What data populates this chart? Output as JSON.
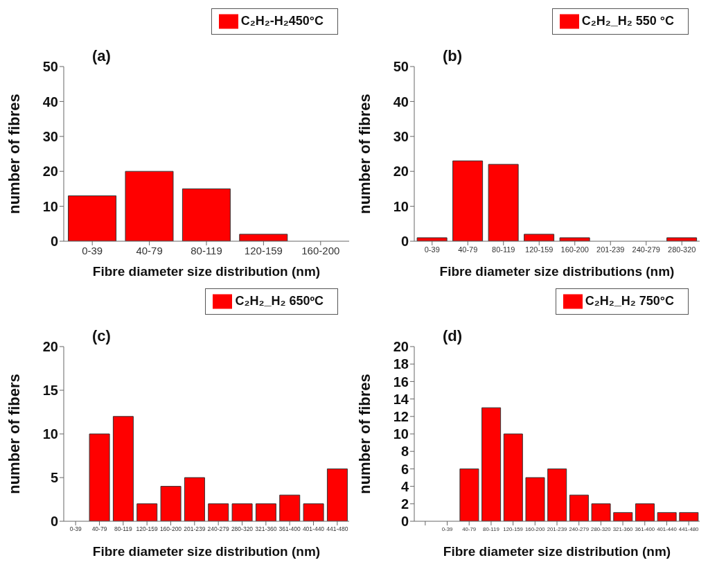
{
  "chart_data": [
    {
      "type": "bar",
      "title": "(a)",
      "categories": [
        "0-39",
        "40-79",
        "80-119",
        "120-159",
        "160-200"
      ],
      "series": [
        {
          "name": "C₂H₂-H₂450°C",
          "color": "#ff0000",
          "values": [
            13,
            20,
            15,
            2,
            0
          ]
        }
      ],
      "xlabel": "Fibre diameter size distribution (nm)",
      "ylabel": "number of fibres",
      "ylim": [
        0,
        50
      ],
      "yticks": [
        0,
        10,
        20,
        30,
        40,
        50
      ],
      "legend": "top right",
      "grid": false
    },
    {
      "type": "bar",
      "title": "(b)",
      "categories": [
        "0-39",
        "40-79",
        "80-119",
        "120-159",
        "160-200",
        "201-239",
        "240-279",
        "280-320"
      ],
      "series": [
        {
          "name": "C₂H₂_H₂ 550 °C",
          "color": "#ff0000",
          "values": [
            1,
            23,
            22,
            2,
            1,
            0,
            0,
            1
          ]
        }
      ],
      "xlabel": "Fibre diameter size distributions (nm)",
      "ylabel": "number of fibres",
      "ylim": [
        0,
        50
      ],
      "yticks": [
        0,
        10,
        20,
        30,
        40,
        50
      ],
      "legend": "top right",
      "grid": false
    },
    {
      "type": "bar",
      "title": "(c)",
      "categories": [
        "0-39",
        "40-79",
        "80-119",
        "120-159",
        "160-200",
        "201-239",
        "240-279",
        "280-320",
        "321-360",
        "361-400",
        "401-440",
        "441-480"
      ],
      "series": [
        {
          "name": "C₂H₂_H₂ 650ºC",
          "color": "#ff0000",
          "values": [
            0,
            10,
            12,
            2,
            4,
            5,
            2,
            2,
            2,
            3,
            2,
            6
          ]
        }
      ],
      "xlabel": "Fibre diameter size distribution (nm)",
      "ylabel": "number of fibers",
      "ylim": [
        0,
        20
      ],
      "yticks": [
        0,
        5,
        10,
        15,
        20
      ],
      "legend": "top right",
      "grid": false
    },
    {
      "type": "bar",
      "title": "(d)",
      "categories": [
        null,
        "0-39",
        "40-79",
        "80-119",
        "120-159",
        "160-200",
        "201-239",
        "240-279",
        "280-320",
        "321-360",
        "361-400",
        "401-440",
        "441-480"
      ],
      "series": [
        {
          "name": "C₂H₂_H₂ 750°C",
          "color": "#ff0000",
          "values": [
            null,
            0,
            6,
            13,
            10,
            5,
            6,
            3,
            2,
            1,
            2,
            1,
            1
          ]
        }
      ],
      "xlabel": "Fibre diameter size distribution (nm)",
      "ylabel": "number of fibres",
      "ylim": [
        0,
        20
      ],
      "yticks": [
        0,
        2,
        4,
        6,
        8,
        10,
        12,
        14,
        16,
        18,
        20
      ],
      "legend": "top right",
      "grid": false
    }
  ]
}
